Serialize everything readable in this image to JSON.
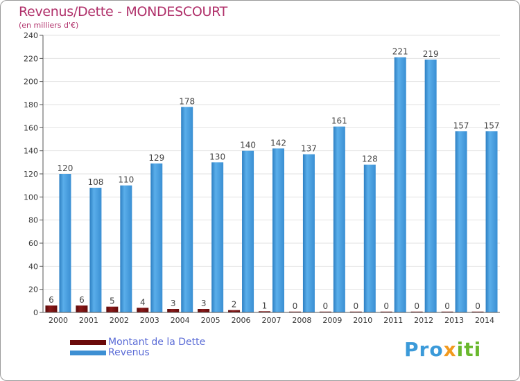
{
  "chart_data": {
    "type": "bar",
    "title": "Revenus/Dette - MONDESCOURT",
    "subtitle": "(en milliers d'€)",
    "categories": [
      "2000",
      "2001",
      "2002",
      "2003",
      "2004",
      "2005",
      "2006",
      "2007",
      "2008",
      "2009",
      "2010",
      "2011",
      "2012",
      "2013",
      "2014"
    ],
    "series": [
      {
        "name": "Montant de la Dette",
        "color": "#7a0f0f",
        "values": [
          6,
          6,
          5,
          4,
          3,
          3,
          2,
          1,
          0,
          0,
          0,
          0,
          0,
          0,
          0
        ]
      },
      {
        "name": "Revenus",
        "color": "#4a9fe0",
        "values": [
          120,
          108,
          110,
          129,
          178,
          130,
          140,
          142,
          137,
          161,
          128,
          221,
          219,
          157,
          157
        ]
      }
    ],
    "ylim": [
      0,
      240
    ],
    "yticks": [
      0,
      20,
      40,
      60,
      80,
      100,
      120,
      140,
      160,
      180,
      200,
      220,
      240
    ],
    "grid": true,
    "legend": "bottom-left"
  },
  "brand": {
    "p1": "Pro",
    "p2": "x",
    "p3": "iti"
  }
}
